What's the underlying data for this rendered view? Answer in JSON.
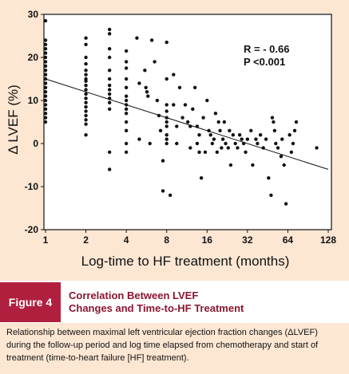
{
  "chart_data": {
    "type": "scatter",
    "xlabel": "Log-time to HF treatment (months)",
    "ylabel": "Δ LVEF (%)",
    "x_scale": "log2",
    "xlim": [
      1,
      128
    ],
    "ylim": [
      -20,
      30
    ],
    "x_ticks": [
      "1",
      "2",
      "4",
      "8",
      "16",
      "32",
      "64",
      "128"
    ],
    "y_ticks": [
      "30",
      "20",
      "10",
      "0",
      "-10",
      "-20"
    ],
    "annotations": [
      "R = - 0.66",
      "P <0.001"
    ],
    "regression_line": {
      "x": [
        1,
        128
      ],
      "y": [
        15,
        -6
      ]
    },
    "series": [
      {
        "points": [
          [
            1,
            28.5
          ],
          [
            1,
            24
          ],
          [
            1,
            23
          ],
          [
            1,
            22
          ],
          [
            1,
            21
          ],
          [
            1,
            20
          ],
          [
            1,
            19
          ],
          [
            1,
            18
          ],
          [
            1,
            17
          ],
          [
            1,
            16
          ],
          [
            1,
            15
          ],
          [
            1,
            14
          ],
          [
            1,
            13
          ],
          [
            1,
            12
          ],
          [
            1,
            11
          ],
          [
            1,
            10
          ],
          [
            1,
            9
          ],
          [
            1,
            8
          ],
          [
            1,
            7
          ],
          [
            1,
            6
          ],
          [
            1,
            5
          ],
          [
            2,
            24.5
          ],
          [
            2,
            23
          ],
          [
            2,
            20
          ],
          [
            2,
            18.5
          ],
          [
            2,
            17
          ],
          [
            2,
            16
          ],
          [
            2,
            15
          ],
          [
            2,
            14.5
          ],
          [
            2,
            13.5
          ],
          [
            2,
            12.5
          ],
          [
            2,
            11.5
          ],
          [
            2,
            10.5
          ],
          [
            2,
            9.5
          ],
          [
            2,
            8.5
          ],
          [
            2,
            7.5
          ],
          [
            2,
            6.5
          ],
          [
            2,
            5.5
          ],
          [
            2,
            4.5
          ],
          [
            2,
            2
          ],
          [
            3,
            26.5
          ],
          [
            3,
            25.5
          ],
          [
            3,
            22
          ],
          [
            3,
            20
          ],
          [
            3,
            17
          ],
          [
            3,
            15
          ],
          [
            3,
            13.5
          ],
          [
            3,
            12.5
          ],
          [
            3,
            11.5
          ],
          [
            3,
            10.5
          ],
          [
            3,
            9.5
          ],
          [
            3,
            8
          ],
          [
            3,
            -2
          ],
          [
            3,
            -6
          ],
          [
            4,
            21.5
          ],
          [
            4,
            19
          ],
          [
            4,
            17.5
          ],
          [
            4,
            15
          ],
          [
            4,
            13
          ],
          [
            4,
            11
          ],
          [
            4,
            10
          ],
          [
            4,
            9
          ],
          [
            4,
            8
          ],
          [
            4,
            7
          ],
          [
            4,
            5
          ],
          [
            4,
            3
          ],
          [
            4,
            0
          ],
          [
            4,
            -2
          ],
          [
            4.8,
            24.5
          ],
          [
            5,
            14
          ],
          [
            5,
            1
          ],
          [
            5.5,
            17
          ],
          [
            5.6,
            13
          ],
          [
            5.7,
            12
          ],
          [
            5.8,
            11
          ],
          [
            6,
            0
          ],
          [
            6.2,
            24
          ],
          [
            6.5,
            19
          ],
          [
            6.8,
            10
          ],
          [
            7,
            6.5
          ],
          [
            7.2,
            3
          ],
          [
            7.5,
            -4
          ],
          [
            7.5,
            -11
          ],
          [
            8,
            23.5
          ],
          [
            8,
            15
          ],
          [
            8,
            9
          ],
          [
            8,
            7.5
          ],
          [
            8,
            6
          ],
          [
            8,
            5
          ],
          [
            8,
            4
          ],
          [
            8,
            2
          ],
          [
            8,
            1
          ],
          [
            8,
            0
          ],
          [
            8.5,
            -12
          ],
          [
            9,
            16
          ],
          [
            9,
            9
          ],
          [
            9.5,
            4
          ],
          [
            9.5,
            0
          ],
          [
            10,
            13
          ],
          [
            10.5,
            6
          ],
          [
            11,
            9
          ],
          [
            11.5,
            5
          ],
          [
            12,
            4
          ],
          [
            12,
            -1
          ],
          [
            12.5,
            8
          ],
          [
            13,
            13
          ],
          [
            13.5,
            4
          ],
          [
            13.5,
            0
          ],
          [
            14,
            2
          ],
          [
            14,
            -2
          ],
          [
            14.5,
            -8
          ],
          [
            15,
            6
          ],
          [
            15.5,
            -2
          ],
          [
            16,
            10
          ],
          [
            16.5,
            3
          ],
          [
            17,
            2
          ],
          [
            17.5,
            0
          ],
          [
            18,
            1
          ],
          [
            18.5,
            7
          ],
          [
            19,
            -2
          ],
          [
            19.5,
            5
          ],
          [
            20,
            3
          ],
          [
            20.5,
            -1
          ],
          [
            21,
            1
          ],
          [
            21.5,
            5
          ],
          [
            22,
            0
          ],
          [
            23,
            -1
          ],
          [
            23.5,
            3
          ],
          [
            24,
            -5
          ],
          [
            25,
            2
          ],
          [
            26,
            0
          ],
          [
            27,
            -1
          ],
          [
            28,
            2
          ],
          [
            29,
            1
          ],
          [
            30,
            0
          ],
          [
            31,
            -2
          ],
          [
            32,
            1
          ],
          [
            34,
            3
          ],
          [
            35,
            -5
          ],
          [
            37,
            1
          ],
          [
            38,
            0
          ],
          [
            40,
            2
          ],
          [
            42,
            -1
          ],
          [
            44,
            1
          ],
          [
            46,
            -8
          ],
          [
            48,
            -12
          ],
          [
            49,
            6
          ],
          [
            50,
            5
          ],
          [
            51,
            3
          ],
          [
            52,
            0
          ],
          [
            54,
            -1
          ],
          [
            57,
            -3
          ],
          [
            58,
            1
          ],
          [
            60,
            -5
          ],
          [
            62,
            -14
          ],
          [
            66,
            2
          ],
          [
            68,
            -2
          ],
          [
            70,
            0
          ],
          [
            72,
            3
          ],
          [
            74,
            5
          ],
          [
            105,
            -1
          ]
        ]
      }
    ]
  },
  "figure": {
    "badge": "Figure 4",
    "title_line1": "Correlation Between LVEF",
    "title_line2": "Changes and Time-to-HF Treatment"
  },
  "caption": "Relationship between maximal left ventricular ejection fraction changes (ΔLVEF) during the follow-up period and log time elapsed from chemotherapy and start of treatment (time-to-heart failure [HF] treatment).",
  "colors": {
    "background": "#fde7d3",
    "badge": "#b01f3e",
    "title": "#8a1530",
    "points": "#111111"
  }
}
